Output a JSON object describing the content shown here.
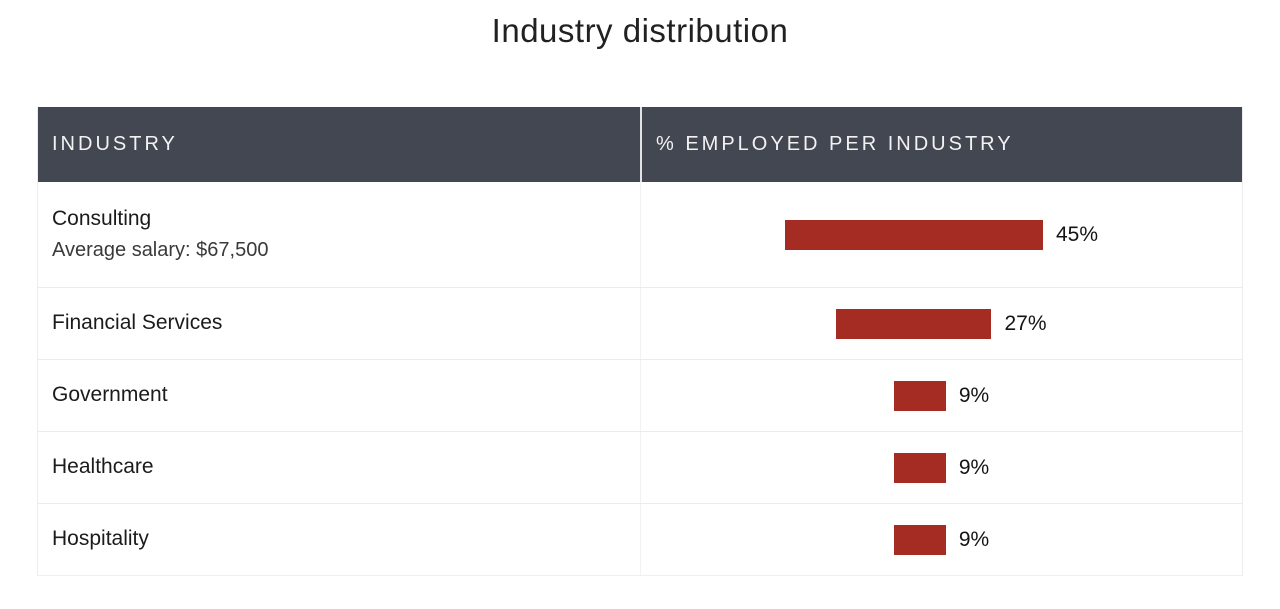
{
  "title": "Industry distribution",
  "table": {
    "headers": [
      "INDUSTRY",
      "% EMPLOYED PER INDUSTRY"
    ],
    "rows": [
      {
        "industry": "Consulting",
        "note": "Average salary: $67,500",
        "percent": 45,
        "percent_label": "45%"
      },
      {
        "industry": "Financial Services",
        "note": "",
        "percent": 27,
        "percent_label": "27%"
      },
      {
        "industry": "Government",
        "note": "",
        "percent": 9,
        "percent_label": "9%"
      },
      {
        "industry": "Healthcare",
        "note": "",
        "percent": 9,
        "percent_label": "9%"
      },
      {
        "industry": "Hospitality",
        "note": "",
        "percent": 9,
        "percent_label": "9%"
      }
    ]
  },
  "colors": {
    "header_background": "#434751",
    "header_text": "#f2f2f3",
    "bar": "#a52c23",
    "row_divider": "#ececec",
    "body_text": "#1b1b1b"
  },
  "chart_data": {
    "type": "bar",
    "orientation": "horizontal",
    "title": "Industry distribution",
    "categories": [
      "Consulting",
      "Financial Services",
      "Government",
      "Healthcare",
      "Hospitality"
    ],
    "values": [
      45,
      27,
      9,
      9,
      9
    ],
    "value_suffix": "%",
    "annotations": [
      {
        "category": "Consulting",
        "text": "Average salary: $67,500"
      }
    ],
    "xlabel": "% EMPLOYED PER INDUSTRY",
    "ylabel": "INDUSTRY",
    "xlim": [
      0,
      100
    ],
    "grid": false,
    "legend": "none",
    "bar_color": "#a52c23"
  }
}
